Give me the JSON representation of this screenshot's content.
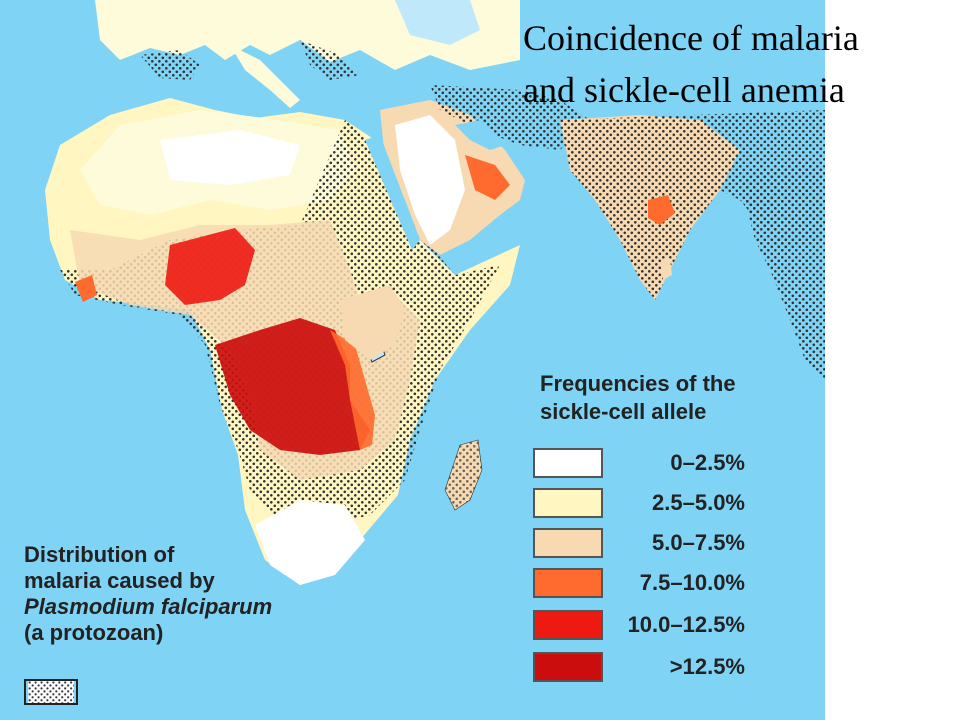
{
  "title": {
    "line1": "Coincidence of malaria",
    "line2": "and sickle-cell anemia"
  },
  "colors": {
    "ocean": "#7fd3f5",
    "land_base": "#fdfbd9",
    "freq_0_2_5": "#ffffff",
    "freq_2_5_5": "#fff6c2",
    "freq_5_7_5": "#f7d9b2",
    "freq_7_5_10": "#ff6a2e",
    "freq_10_12_5": "#ee1a12",
    "freq_gt_12_5": "#cc0d0d"
  },
  "legend": {
    "title_line1": "Frequencies of the",
    "title_line2": "sickle-cell allele",
    "items": [
      {
        "label": "0–2.5%",
        "color": "#ffffff"
      },
      {
        "label": "2.5–5.0%",
        "color": "#fff6c2"
      },
      {
        "label": "5.0–7.5%",
        "color": "#f7d9b2"
      },
      {
        "label": "7.5–10.0%",
        "color": "#ff6a2e"
      },
      {
        "label": "10.0–12.5%",
        "color": "#ee1a12"
      },
      {
        "label": ">12.5%",
        "color": "#cc0d0d"
      }
    ]
  },
  "distribution": {
    "line1": "Distribution of",
    "line2": "malaria caused by",
    "line3": "Plasmodium falciparum",
    "line4": "(a protozoan)"
  }
}
